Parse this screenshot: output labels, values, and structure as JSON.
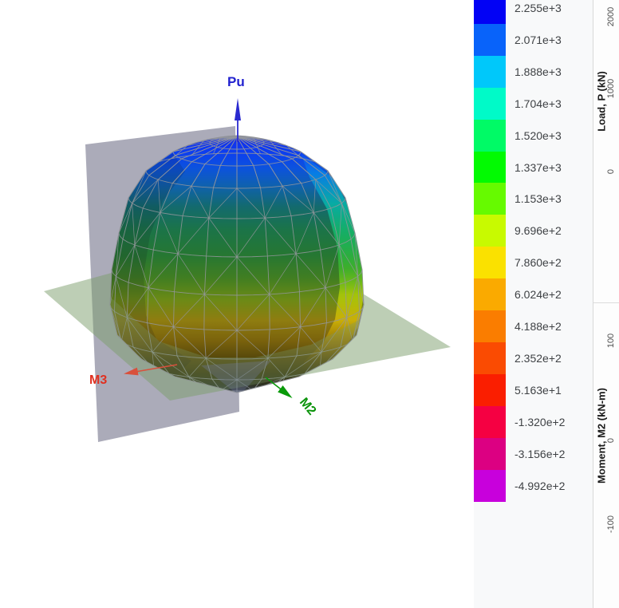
{
  "view3d": {
    "p_axis_label": "Pu",
    "m3_axis_label": "M3",
    "m2_axis_label": "M2",
    "p_axis_color": "#2222CF",
    "m3_axis_color": "#E03020",
    "m2_axis_color": "#0A930A",
    "gray_plane_color": "#8A8A9E",
    "green_plane_color": "#7C9E6C"
  },
  "legend": {
    "entries": [
      {
        "value": "2.255e+3",
        "color": "#0202F5"
      },
      {
        "value": "2.071e+3",
        "color": "#0863FA"
      },
      {
        "value": "1.888e+3",
        "color": "#00C8FA"
      },
      {
        "value": "1.704e+3",
        "color": "#00FAC8"
      },
      {
        "value": "1.520e+3",
        "color": "#00FA66"
      },
      {
        "value": "1.337e+3",
        "color": "#02FA02"
      },
      {
        "value": "1.153e+3",
        "color": "#66FA00"
      },
      {
        "value": "9.696e+2",
        "color": "#C8FA00"
      },
      {
        "value": "7.860e+2",
        "color": "#FAE100"
      },
      {
        "value": "6.024e+2",
        "color": "#FAAA00"
      },
      {
        "value": "4.188e+2",
        "color": "#FA7D00"
      },
      {
        "value": "2.352e+2",
        "color": "#FA4B02"
      },
      {
        "value": "5.163e+1",
        "color": "#FA1E00"
      },
      {
        "value": "-1.320e+2",
        "color": "#F50042"
      },
      {
        "value": "-3.156e+2",
        "color": "#DC0082"
      },
      {
        "value": "-4.992e+2",
        "color": "#C800DC"
      }
    ]
  },
  "side_charts": {
    "top": {
      "axis_label": "Load, P (kN)",
      "ticks": [
        "2000",
        "1000",
        "0"
      ]
    },
    "bottom": {
      "axis_label": "Moment, M2 (kN-m)",
      "ticks": [
        "100",
        "0",
        "-100"
      ]
    }
  },
  "chart_data": {
    "type": "surface",
    "description": "3D biaxial P-M-M interaction surface for a column, meshed and colored by axial load capacity; a vertical gray plane (M3-Pu) and horizontal green plane (M2-M3) cut through the surface",
    "axes": {
      "vertical": "Pu",
      "left_horizontal": "M3",
      "right_horizontal": "M2"
    },
    "units": {
      "P": "kN",
      "M2": "kN-m",
      "M3": "kN-m"
    },
    "color_scale_values": [
      2255,
      2071,
      1888,
      1704,
      1520,
      1337,
      1153,
      969.6,
      786.0,
      602.4,
      418.8,
      235.2,
      51.63,
      -132.0,
      -315.6,
      -499.2
    ],
    "color_scale_colors": [
      "#0202F5",
      "#0863FA",
      "#00C8FA",
      "#00FAC8",
      "#00FA66",
      "#02FA02",
      "#66FA00",
      "#C8FA00",
      "#FAE100",
      "#FAAA00",
      "#FA7D00",
      "#FA4B02",
      "#FA1E00",
      "#F50042",
      "#DC0082",
      "#C800DC"
    ],
    "p_axis_range_kN": [
      -499.2,
      2255
    ],
    "side_chart_p_ticks_kN": [
      2000,
      1000,
      0
    ],
    "side_chart_m2_ticks_kNm": [
      100,
      0,
      -100
    ],
    "legend_position": "right"
  }
}
